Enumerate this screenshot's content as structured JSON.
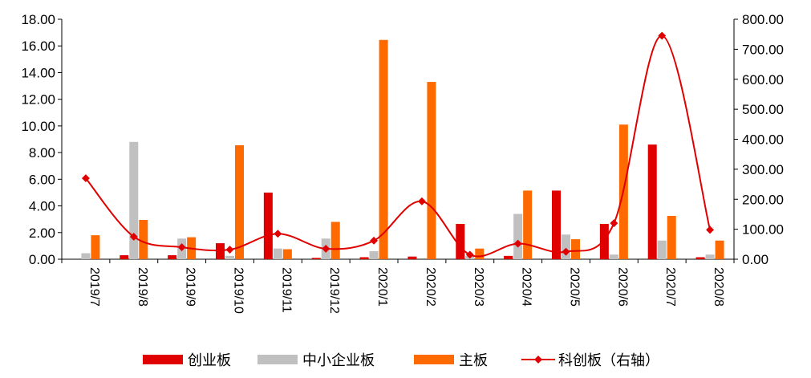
{
  "chart_data": {
    "type": "bar",
    "categories": [
      "2019/7",
      "2019/8",
      "2019/9",
      "2019/10",
      "2019/11",
      "2019/12",
      "2020/1",
      "2020/2",
      "2020/3",
      "2020/4",
      "2020/5",
      "2020/6",
      "2020/7",
      "2020/8"
    ],
    "series": [
      {
        "name": "创业板",
        "type": "bar",
        "axis": "left",
        "color": "#e00000",
        "values": [
          0.0,
          0.3,
          0.3,
          1.2,
          5.0,
          0.1,
          0.15,
          0.2,
          2.65,
          0.25,
          5.15,
          2.65,
          8.6,
          0.15
        ]
      },
      {
        "name": "中小企业板",
        "type": "bar",
        "axis": "left",
        "color": "#c0c0c0",
        "values": [
          0.45,
          8.8,
          1.55,
          0.25,
          0.8,
          1.55,
          0.6,
          0.0,
          0.25,
          3.4,
          1.85,
          0.35,
          1.4,
          0.35
        ]
      },
      {
        "name": "主板",
        "type": "bar",
        "axis": "left",
        "color": "#ff6a00",
        "values": [
          1.8,
          2.95,
          1.65,
          8.55,
          0.75,
          2.8,
          16.45,
          13.3,
          0.8,
          5.15,
          1.5,
          10.1,
          3.25,
          1.4
        ]
      },
      {
        "name": "科创板（右轴）",
        "type": "line",
        "axis": "right",
        "color": "#e00000",
        "values": [
          270,
          75,
          40,
          32,
          85,
          35,
          62,
          193,
          15,
          52,
          25,
          120,
          745,
          98
        ]
      }
    ],
    "y_left": {
      "min": 0,
      "max": 18,
      "step": 2,
      "tick_labels": [
        "0.00",
        "2.00",
        "4.00",
        "6.00",
        "8.00",
        "10.00",
        "12.00",
        "14.00",
        "16.00",
        "18.00"
      ]
    },
    "y_right": {
      "min": 0,
      "max": 800,
      "step": 100,
      "tick_labels": [
        "0.00",
        "100.00",
        "200.00",
        "300.00",
        "400.00",
        "500.00",
        "600.00",
        "700.00",
        "800.00"
      ]
    },
    "legend_position": "bottom",
    "grid": false
  }
}
